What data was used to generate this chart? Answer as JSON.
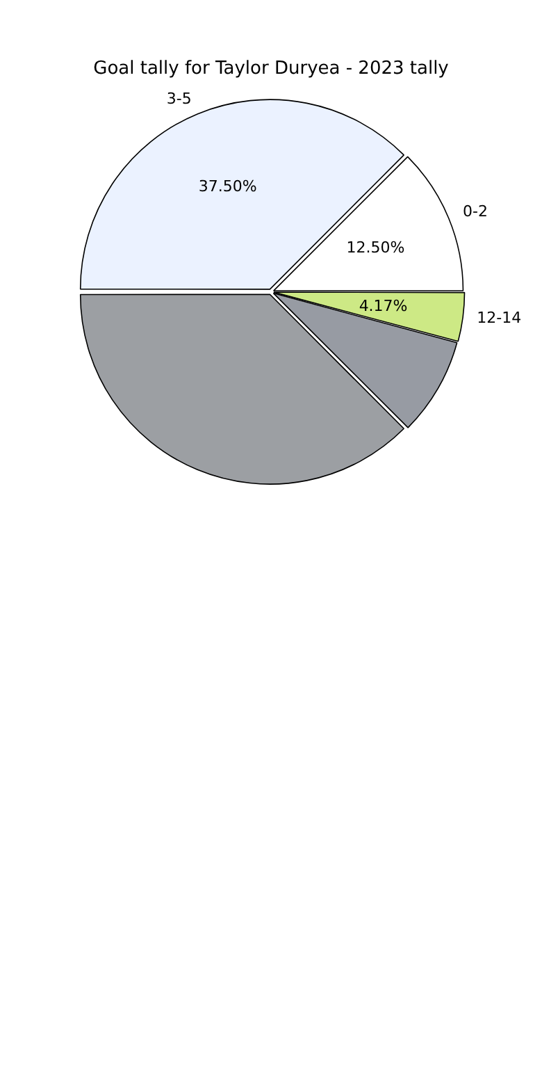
{
  "chart_data": {
    "type": "pie",
    "title": "Goal tally for Taylor Duryea - 2023 tally",
    "categories": [
      "0-2",
      "12-14",
      null,
      null,
      "3-5"
    ],
    "values": [
      12.5,
      4.17,
      8.33,
      37.5,
      37.5
    ],
    "value_labels": [
      "12.50%",
      "4.17%",
      null,
      null,
      "37.50%"
    ],
    "colors": [
      "#ffffff",
      "#cde985",
      "#979ba3",
      "#9c9fa3",
      "#ebf2ff"
    ],
    "legend": false
  }
}
